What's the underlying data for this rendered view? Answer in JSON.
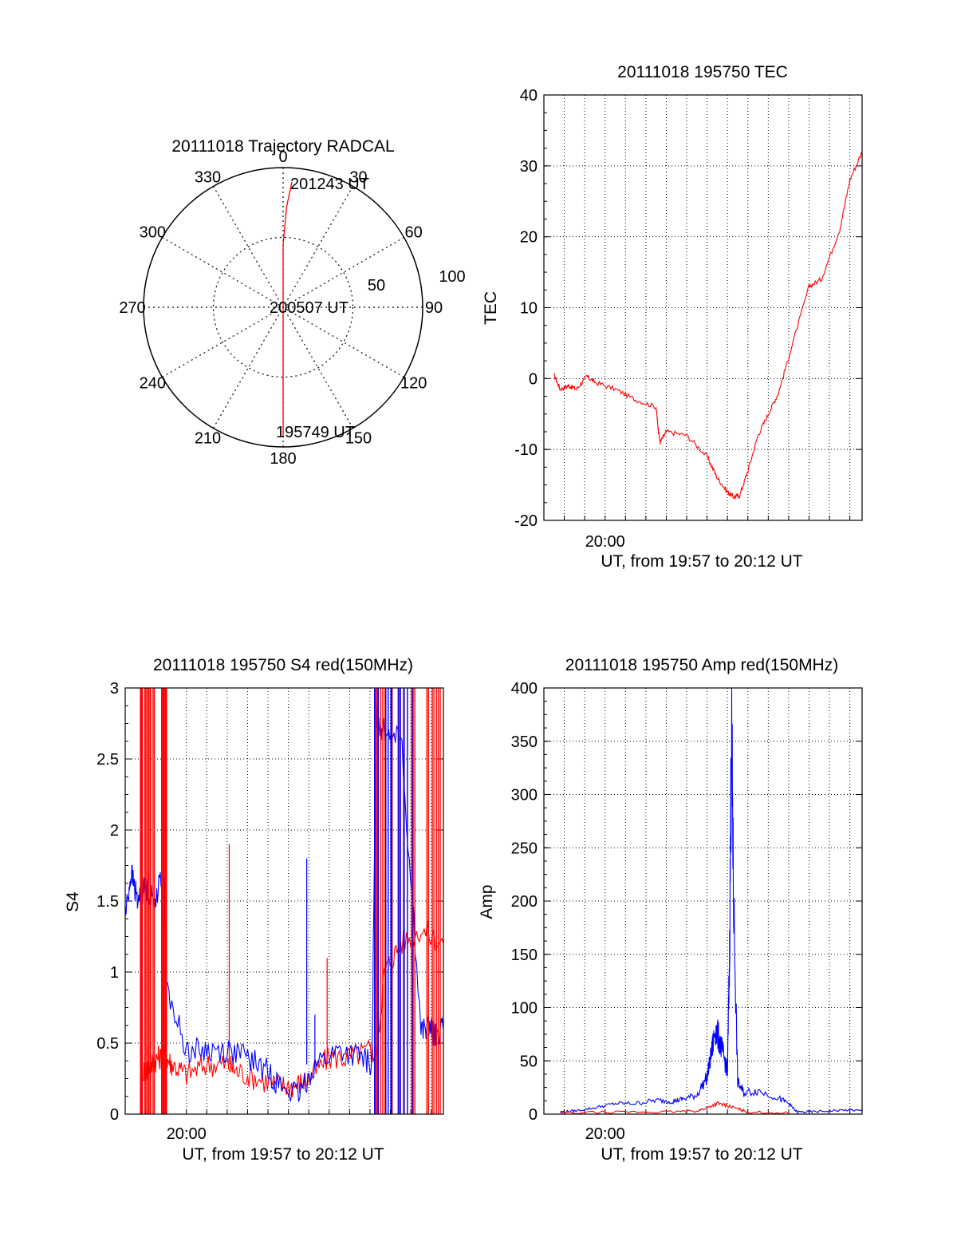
{
  "chart_data": [
    {
      "type": "polar",
      "title": "20111018 Trajectory RADCAL",
      "azimuth_labels": [
        "0",
        "30",
        "60",
        "90",
        "120",
        "150",
        "180",
        "210",
        "240",
        "270",
        "300",
        "330"
      ],
      "radial_labels": [
        "50",
        "100"
      ],
      "rlim": [
        0,
        100
      ],
      "grid": true,
      "series": [
        {
          "color": "#ff0000",
          "points": [
            {
              "az": 180,
              "r": 93
            },
            {
              "az": 180,
              "r": 70
            },
            {
              "az": 180,
              "r": 45
            },
            {
              "az": 180,
              "r": 20
            },
            {
              "az": 180,
              "r": 3
            },
            {
              "az": 0,
              "r": 18
            },
            {
              "az": 0,
              "r": 45
            },
            {
              "az": 2,
              "r": 72
            },
            {
              "az": 4,
              "r": 90
            }
          ]
        }
      ],
      "annotations": [
        {
          "text": "201243 UT"
        },
        {
          "text": "200507 UT"
        },
        {
          "text": "195749 UT"
        }
      ]
    },
    {
      "type": "line",
      "title": "20111018 195750 TEC",
      "ylabel": "TEC",
      "xlabel": "UT, from 19:57 to 20:12 UT",
      "xtick_label": "20:00",
      "xlim": [
        0,
        15.6
      ],
      "xtick_minutes": 3.0,
      "ylim": [
        -20,
        40
      ],
      "yticks": [
        "-20",
        "-10",
        "0",
        "10",
        "20",
        "30",
        "40"
      ],
      "grid": true,
      "series": [
        {
          "color": "#ff0000",
          "x": [
            0.5,
            0.8,
            1.2,
            1.6,
            2.1,
            2.5,
            3.5,
            4.5,
            5.5,
            5.6,
            5.7,
            6.0,
            7.0,
            8.0,
            8.5,
            9.0,
            9.3,
            9.6,
            10.0,
            10.5,
            11.0,
            11.5,
            12.0,
            13.0,
            13.6,
            14.5,
            15.0,
            15.6
          ],
          "y": [
            0.5,
            -1.5,
            -1.0,
            -1.5,
            0.3,
            -0.5,
            -1.5,
            -3.0,
            -4.0,
            -7.0,
            -9.0,
            -7.5,
            -8.0,
            -11.0,
            -14.0,
            -16.0,
            -16.7,
            -16.5,
            -13.0,
            -8.0,
            -5.0,
            -2.0,
            3.0,
            13.0,
            14.0,
            21.0,
            28.0,
            32.0
          ]
        }
      ]
    },
    {
      "type": "line",
      "title": "20111018 195750 S4 red(150MHz)",
      "ylabel": "S4",
      "xlabel": "UT, from 19:57 to 20:12 UT",
      "xtick_label": "20:00",
      "xlim": [
        0,
        15.6
      ],
      "xtick_minutes": 3.0,
      "ylim": [
        0,
        3
      ],
      "yticks": [
        "0",
        "0.5",
        "1",
        "1.5",
        "2",
        "2.5",
        "3"
      ],
      "grid": true,
      "series": [
        {
          "color": "#ff0000",
          "x": [
            0.9,
            1.3,
            1.6,
            2.0,
            2.3,
            3.0,
            4.0,
            5.0,
            5.5,
            6.5,
            7.6,
            8.3,
            9.0,
            10.0,
            11.0,
            12.0,
            12.3,
            12.7,
            13.5,
            14.5,
            15.6
          ],
          "y": [
            0.3,
            0.35,
            0.4,
            0.4,
            0.35,
            0.28,
            0.35,
            0.35,
            0.3,
            0.25,
            0.2,
            0.2,
            0.25,
            0.4,
            0.4,
            0.45,
            0.4,
            1.0,
            1.2,
            1.3,
            1.2
          ],
          "spikes": [
            {
              "x": 5.1,
              "y": 1.9
            },
            {
              "x": 9.9,
              "y": 1.1
            }
          ]
        },
        {
          "color": "#0000ff",
          "x": [
            0.0,
            0.3,
            0.6,
            1.0,
            1.4,
            1.9,
            2.0,
            3.0,
            4.0,
            5.0,
            6.0,
            7.0,
            7.6,
            8.5,
            9.3,
            10.5,
            11.5,
            12.1,
            12.3,
            12.6,
            13.5,
            14.5,
            15.0,
            15.2,
            15.6
          ],
          "y": [
            1.4,
            1.7,
            1.5,
            1.6,
            1.5,
            1.7,
            0.9,
            0.45,
            0.45,
            0.45,
            0.4,
            0.3,
            0.2,
            0.13,
            0.35,
            0.45,
            0.4,
            0.35,
            2.8,
            2.7,
            2.7,
            0.6,
            0.6,
            0.55,
            0.6
          ],
          "spikes": [
            {
              "x": 8.9,
              "y": 1.8
            },
            {
              "x": 9.3,
              "y": 0.7
            }
          ]
        }
      ]
    },
    {
      "type": "line",
      "title": "20111018 195750 Amp red(150MHz)",
      "ylabel": "Amp",
      "xlabel": "UT, from 19:57 to 20:12 UT",
      "xtick_label": "20:00",
      "xlim": [
        0,
        15.6
      ],
      "xtick_minutes": 3.0,
      "ylim": [
        0,
        400
      ],
      "yticks": [
        "0",
        "50",
        "100",
        "150",
        "200",
        "250",
        "300",
        "350",
        "400"
      ],
      "grid": true,
      "series": [
        {
          "color": "#0000ff",
          "x": [
            0.8,
            1.5,
            2.5,
            3.5,
            4.5,
            5.5,
            6.3,
            6.8,
            7.5,
            8.0,
            8.2,
            8.4,
            8.6,
            8.8,
            9.0,
            9.1,
            9.2,
            9.3,
            9.5,
            9.8,
            10.5,
            11.5,
            12.0,
            12.4,
            13.0,
            14.0,
            15.0,
            15.6
          ],
          "y": [
            2,
            3,
            6,
            10,
            10,
            13,
            12,
            14,
            18,
            35,
            55,
            80,
            70,
            55,
            40,
            150,
            365,
            200,
            30,
            20,
            22,
            15,
            10,
            2,
            2,
            3,
            4,
            3
          ]
        },
        {
          "color": "#ff0000",
          "x": [
            0.8,
            4.0,
            6.0,
            7.5,
            8.0,
            8.5,
            9.0,
            9.5,
            10.0,
            12.0
          ],
          "y": [
            1,
            2,
            2,
            3,
            6,
            10,
            8,
            5,
            2,
            1
          ]
        }
      ]
    }
  ]
}
